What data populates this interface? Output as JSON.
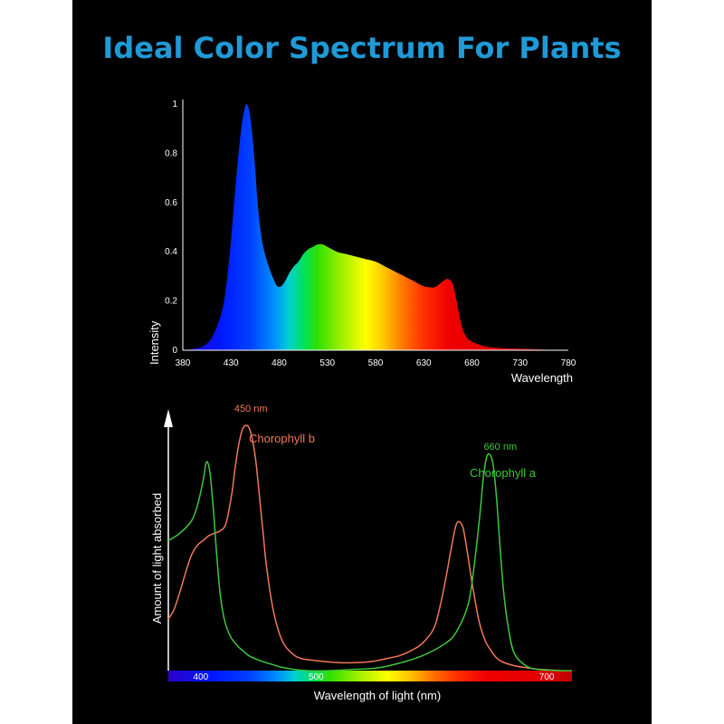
{
  "title": "Ideal Color Spectrum For Plants",
  "colors": {
    "title": "#1f9ad6",
    "background": "#000000",
    "chlorophyll_b": "#f07858",
    "chlorophyll_a": "#3cc83c"
  },
  "chart_data": [
    {
      "type": "area",
      "title": "",
      "xlabel": "Wavelength",
      "ylabel": "Intensity",
      "xlim": [
        380,
        780
      ],
      "ylim": [
        0,
        1
      ],
      "x_ticks": [
        380,
        430,
        480,
        530,
        580,
        630,
        680,
        730,
        780
      ],
      "y_ticks": [
        "0",
        "0.2",
        "0.4",
        "0.6",
        "0.8",
        "1"
      ],
      "fill": "wavelength color gradient",
      "grid": false,
      "x": [
        380,
        390,
        400,
        410,
        420,
        425,
        430,
        435,
        440,
        443,
        446,
        449,
        452,
        455,
        458,
        462,
        466,
        470,
        474,
        478,
        482,
        486,
        490,
        495,
        500,
        505,
        510,
        515,
        520,
        525,
        530,
        540,
        550,
        560,
        570,
        580,
        590,
        600,
        610,
        620,
        630,
        640,
        645,
        650,
        655,
        660,
        663,
        666,
        670,
        675,
        680,
        690,
        700,
        720,
        740,
        760,
        780
      ],
      "y": [
        0.0,
        0.005,
        0.015,
        0.05,
        0.15,
        0.26,
        0.45,
        0.68,
        0.88,
        0.96,
        1.0,
        0.97,
        0.88,
        0.74,
        0.58,
        0.45,
        0.38,
        0.33,
        0.29,
        0.26,
        0.26,
        0.28,
        0.31,
        0.34,
        0.36,
        0.39,
        0.41,
        0.42,
        0.43,
        0.43,
        0.42,
        0.4,
        0.39,
        0.38,
        0.37,
        0.36,
        0.34,
        0.32,
        0.3,
        0.28,
        0.26,
        0.255,
        0.265,
        0.28,
        0.29,
        0.27,
        0.22,
        0.16,
        0.09,
        0.05,
        0.035,
        0.02,
        0.012,
        0.007,
        0.005,
        0.002,
        0.0
      ]
    },
    {
      "type": "line",
      "xlabel": "Wavelength of light (nm)",
      "ylabel": "Amount of light absorbed",
      "xlim": [
        380,
        730
      ],
      "ylim": [
        0,
        1
      ],
      "x_ticks": [
        400,
        500,
        700
      ],
      "colorbar": "visible spectrum",
      "grid": false,
      "series": [
        {
          "name": "Chorophyll b",
          "peak_label": "450 nm",
          "peak_x": 450,
          "x": [
            380,
            385,
            390,
            395,
            400,
            405,
            410,
            415,
            420,
            425,
            430,
            435,
            438,
            441,
            444,
            447,
            450,
            453,
            456,
            459,
            462,
            465,
            470,
            475,
            480,
            485,
            490,
            495,
            500,
            510,
            520,
            530,
            540,
            550,
            560,
            570,
            580,
            590,
            600,
            610,
            615,
            620,
            625,
            630,
            635,
            638,
            641,
            644,
            647,
            650,
            655,
            660,
            665,
            670,
            680,
            690,
            700,
            710,
            720
          ],
          "y": [
            0.21,
            0.25,
            0.32,
            0.4,
            0.47,
            0.51,
            0.53,
            0.55,
            0.56,
            0.57,
            0.6,
            0.72,
            0.83,
            0.92,
            0.98,
            1.0,
            0.99,
            0.94,
            0.85,
            0.71,
            0.57,
            0.43,
            0.27,
            0.17,
            0.11,
            0.08,
            0.06,
            0.05,
            0.045,
            0.04,
            0.035,
            0.032,
            0.032,
            0.034,
            0.04,
            0.05,
            0.06,
            0.08,
            0.11,
            0.17,
            0.25,
            0.36,
            0.49,
            0.6,
            0.59,
            0.52,
            0.43,
            0.34,
            0.26,
            0.19,
            0.12,
            0.08,
            0.05,
            0.035,
            0.02,
            0.012,
            0.006,
            0.003,
            0.0
          ]
        },
        {
          "name": "Chorophyll a",
          "peak_label": "660 nm",
          "peak_x": 660,
          "x": [
            380,
            390,
            400,
            405,
            410,
            413,
            416,
            419,
            422,
            425,
            428,
            431,
            435,
            440,
            445,
            450,
            460,
            470,
            480,
            500,
            520,
            540,
            560,
            580,
            600,
            620,
            630,
            640,
            645,
            650,
            653,
            656,
            659,
            662,
            665,
            668,
            671,
            675,
            680,
            690,
            700,
            720,
            730
          ],
          "y": [
            0.53,
            0.56,
            0.61,
            0.67,
            0.77,
            0.85,
            0.81,
            0.66,
            0.47,
            0.31,
            0.22,
            0.17,
            0.13,
            0.1,
            0.08,
            0.06,
            0.04,
            0.025,
            0.012,
            0.0,
            0.0,
            0.005,
            0.01,
            0.03,
            0.06,
            0.11,
            0.16,
            0.27,
            0.42,
            0.63,
            0.78,
            0.87,
            0.88,
            0.83,
            0.68,
            0.48,
            0.31,
            0.17,
            0.07,
            0.02,
            0.005,
            0.0,
            0.0
          ]
        }
      ]
    }
  ]
}
